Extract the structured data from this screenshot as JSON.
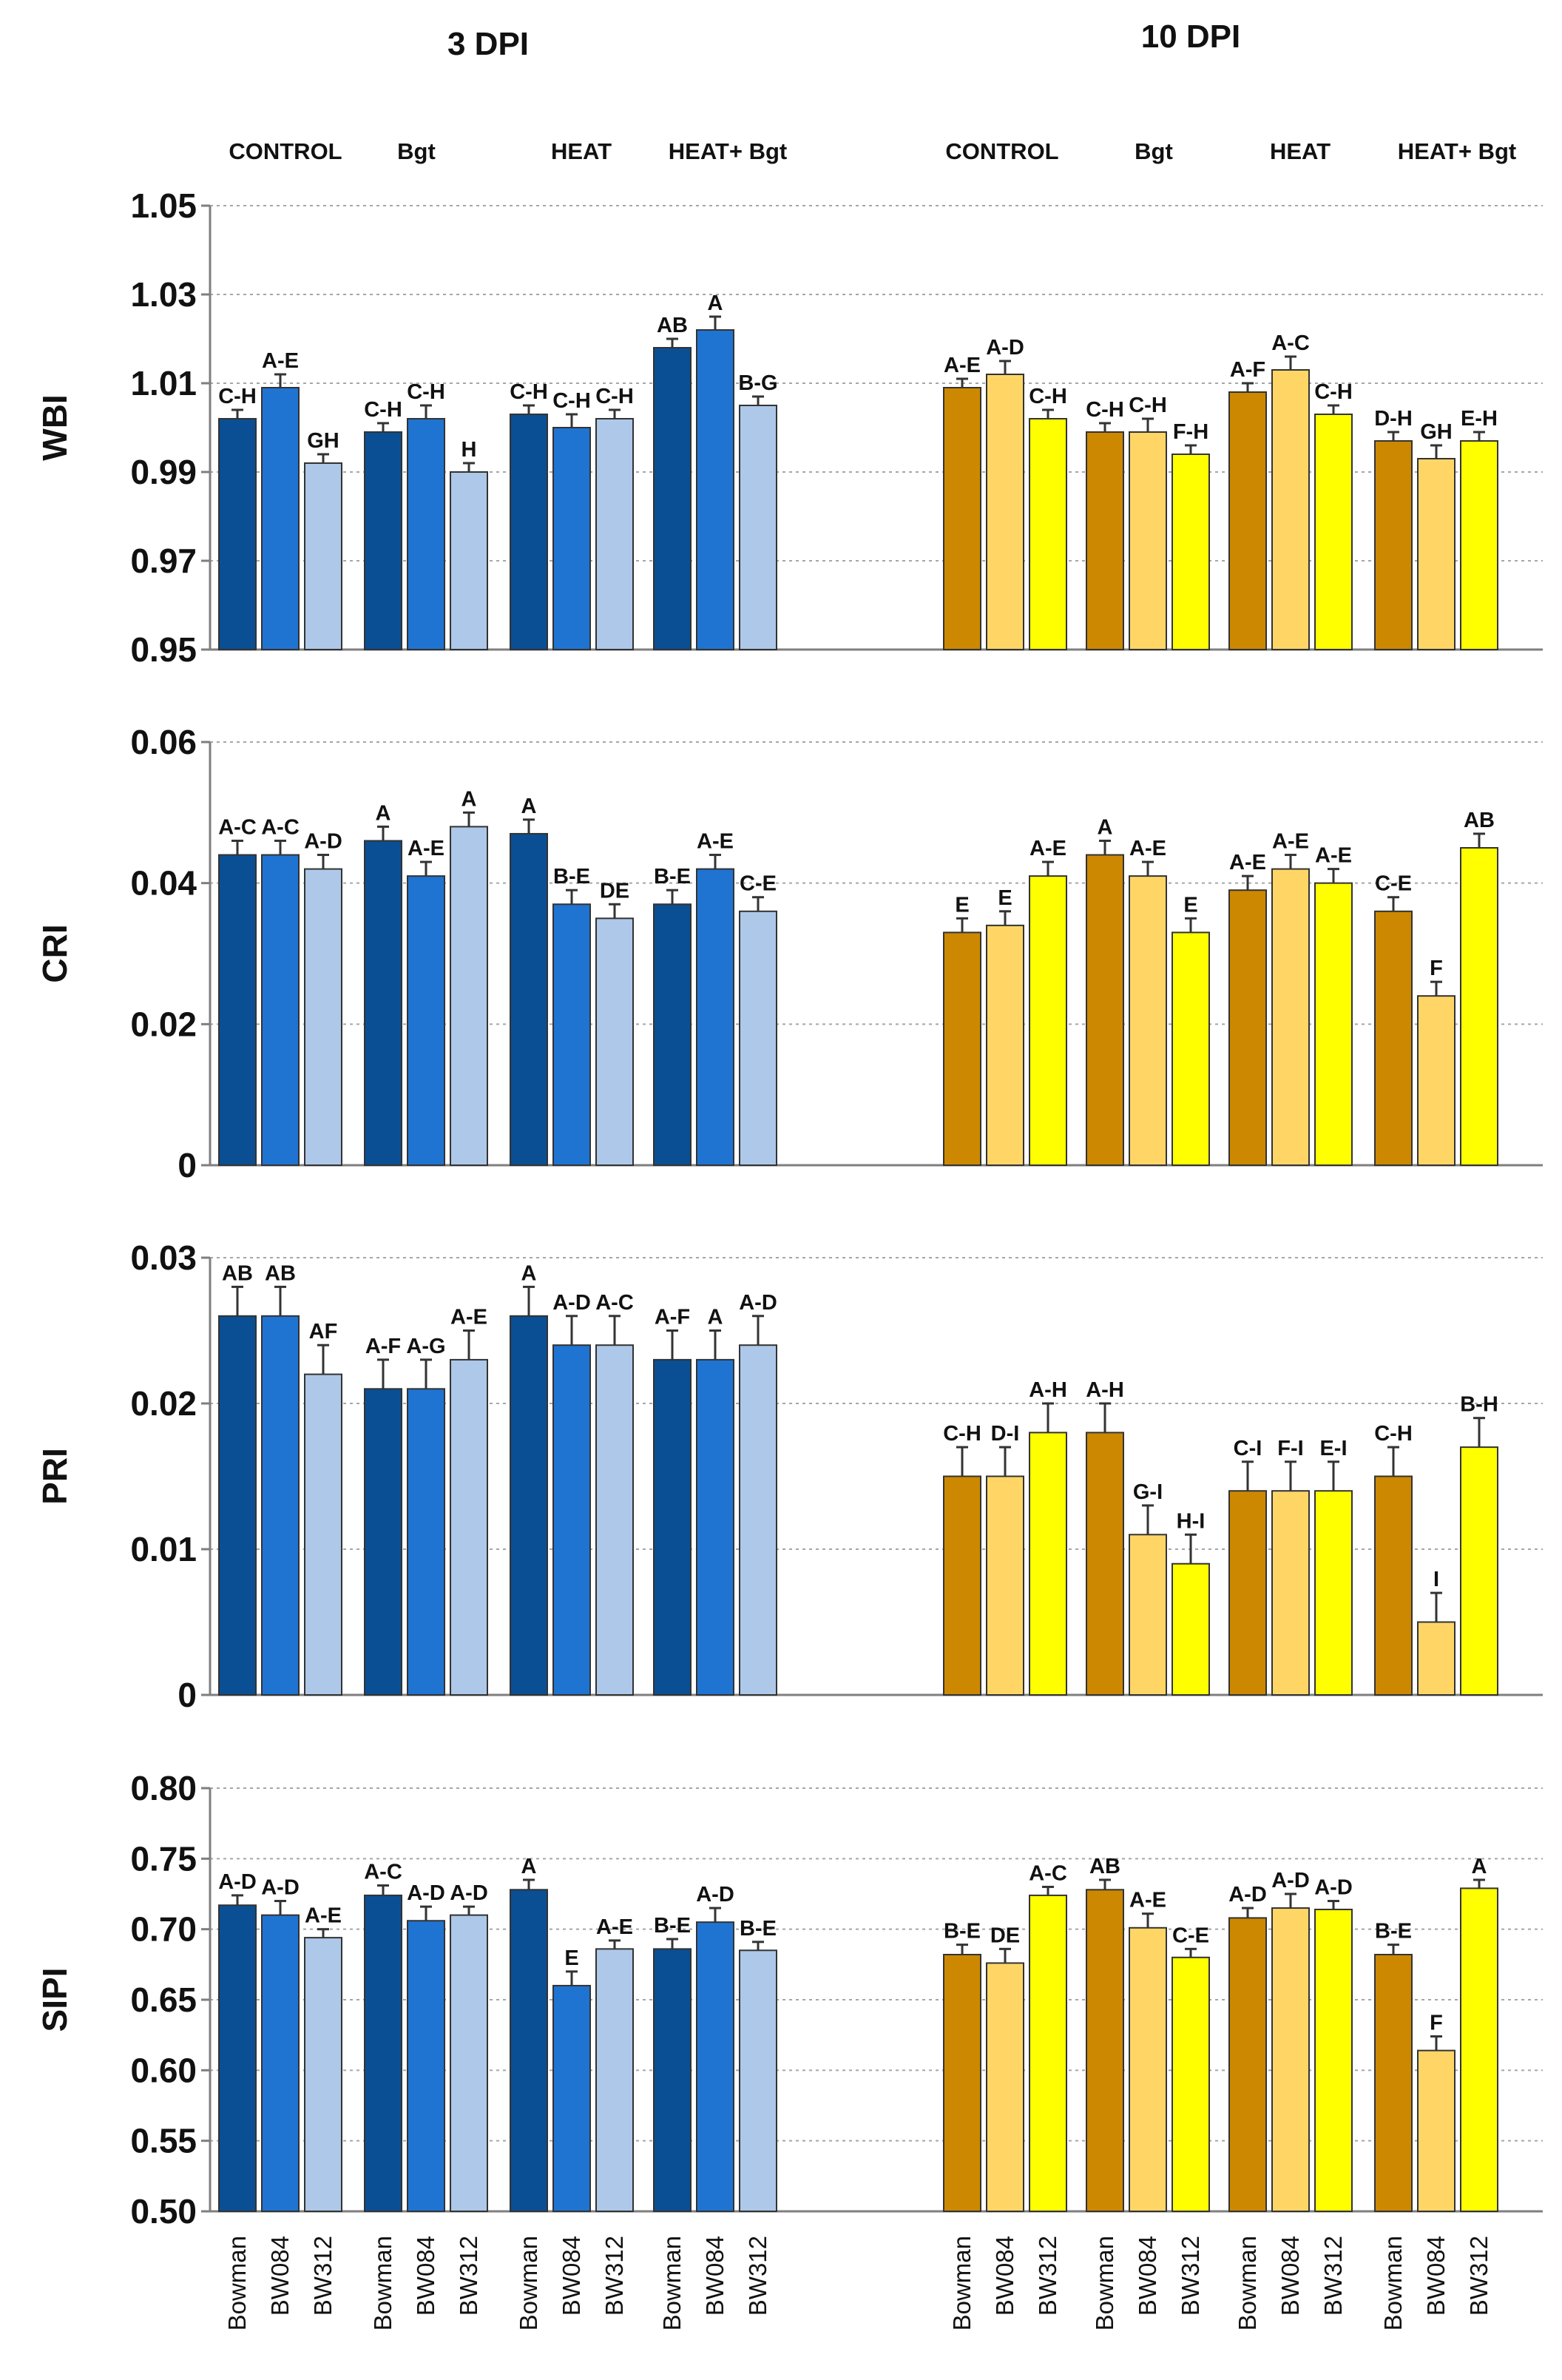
{
  "headers": [
    "3 DPI",
    "10 DPI"
  ],
  "treatments": [
    "CONTROL",
    "Bgt",
    "HEAT",
    "HEAT+ Bgt"
  ],
  "cultivars": [
    "Bowman",
    "BW084",
    "BW312"
  ],
  "colors": {
    "3dpi": [
      "#0a4f94",
      "#1f74d2",
      "#adc8e8"
    ],
    "10dpi": [
      "#cc8800",
      "#ffd666",
      "#ffff00"
    ],
    "grid": "#a6a6a6",
    "axis": "#7f7f7f",
    "bar_edge": "#333333"
  },
  "chart_data": [
    {
      "type": "bar",
      "title": "",
      "ylabel": "WBI",
      "ylim": [
        0.95,
        1.05
      ],
      "yticks": [
        "1.05",
        "1.03",
        "1.01",
        "0.99",
        "0.97",
        "0.95"
      ],
      "series": [
        {
          "name": "3 DPI",
          "values": [
            [
              1.002,
              1.009,
              0.992
            ],
            [
              0.999,
              1.002,
              0.99
            ],
            [
              1.003,
              1.0,
              1.002
            ],
            [
              1.018,
              1.022,
              1.005
            ]
          ],
          "errors": [
            [
              0.002,
              0.003,
              0.002
            ],
            [
              0.002,
              0.003,
              0.002
            ],
            [
              0.002,
              0.003,
              0.002
            ],
            [
              0.002,
              0.003,
              0.002
            ]
          ],
          "labels": [
            [
              "C-H",
              "A-E",
              "GH"
            ],
            [
              "C-H",
              "C-H",
              "H"
            ],
            [
              "C-H",
              "C-H",
              "C-H"
            ],
            [
              "AB",
              "A",
              "B-G"
            ]
          ]
        },
        {
          "name": "10 DPI",
          "values": [
            [
              1.009,
              1.012,
              1.002
            ],
            [
              0.999,
              0.999,
              0.994
            ],
            [
              1.008,
              1.013,
              1.003
            ],
            [
              0.997,
              0.993,
              0.997
            ]
          ],
          "errors": [
            [
              0.002,
              0.003,
              0.002
            ],
            [
              0.002,
              0.003,
              0.002
            ],
            [
              0.002,
              0.003,
              0.002
            ],
            [
              0.002,
              0.003,
              0.002
            ]
          ],
          "labels": [
            [
              "A-E",
              "A-D",
              "C-H"
            ],
            [
              "C-H",
              "C-H",
              "F-H"
            ],
            [
              "A-F",
              "A-C",
              "C-H"
            ],
            [
              "D-H",
              "GH",
              "E-H"
            ]
          ]
        }
      ]
    },
    {
      "type": "bar",
      "title": "",
      "ylabel": "CRI",
      "ylim": [
        0,
        0.06
      ],
      "yticks": [
        "0.06",
        "0.04",
        "0.02",
        "0"
      ],
      "series": [
        {
          "name": "3 DPI",
          "values": [
            [
              0.044,
              0.044,
              0.042
            ],
            [
              0.046,
              0.041,
              0.048
            ],
            [
              0.047,
              0.037,
              0.035
            ],
            [
              0.037,
              0.042,
              0.036
            ]
          ],
          "errors": [
            [
              0.002,
              0.002,
              0.002
            ],
            [
              0.002,
              0.002,
              0.002
            ],
            [
              0.002,
              0.002,
              0.002
            ],
            [
              0.002,
              0.002,
              0.002
            ]
          ],
          "labels": [
            [
              "A-C",
              "A-C",
              "A-D"
            ],
            [
              "A",
              "A-E",
              "A"
            ],
            [
              "A",
              "B-E",
              "DE"
            ],
            [
              "B-E",
              "A-E",
              "C-E"
            ]
          ]
        },
        {
          "name": "10 DPI",
          "values": [
            [
              0.033,
              0.034,
              0.041
            ],
            [
              0.044,
              0.041,
              0.033
            ],
            [
              0.039,
              0.042,
              0.04
            ],
            [
              0.036,
              0.024,
              0.045
            ]
          ],
          "errors": [
            [
              0.002,
              0.002,
              0.002
            ],
            [
              0.002,
              0.002,
              0.002
            ],
            [
              0.002,
              0.002,
              0.002
            ],
            [
              0.002,
              0.002,
              0.002
            ]
          ],
          "labels": [
            [
              "E",
              "E",
              "A-E"
            ],
            [
              "A",
              "A-E",
              "E"
            ],
            [
              "A-E",
              "A-E",
              "A-E"
            ],
            [
              "C-E",
              "F",
              "AB"
            ]
          ]
        }
      ]
    },
    {
      "type": "bar",
      "title": "",
      "ylabel": "PRI",
      "ylim": [
        0,
        0.03
      ],
      "yticks": [
        "0.03",
        "0.02",
        "0.01",
        "0"
      ],
      "series": [
        {
          "name": "3 DPI",
          "values": [
            [
              0.026,
              0.026,
              0.022
            ],
            [
              0.021,
              0.021,
              0.023
            ],
            [
              0.026,
              0.024,
              0.024
            ],
            [
              0.023,
              0.023,
              0.024
            ]
          ],
          "errors": [
            [
              0.002,
              0.002,
              0.002
            ],
            [
              0.002,
              0.002,
              0.002
            ],
            [
              0.002,
              0.002,
              0.002
            ],
            [
              0.002,
              0.002,
              0.002
            ]
          ],
          "labels": [
            [
              "AB",
              "AB",
              "AF"
            ],
            [
              "A-F",
              "A-G",
              "A-E"
            ],
            [
              "A",
              "A-D",
              "A-C"
            ],
            [
              "A-F",
              "A",
              "A-D"
            ]
          ]
        },
        {
          "name": "10 DPI",
          "values": [
            [
              0.015,
              0.015,
              0.018
            ],
            [
              0.018,
              0.011,
              0.009
            ],
            [
              0.014,
              0.014,
              0.014
            ],
            [
              0.015,
              0.005,
              0.017
            ]
          ],
          "errors": [
            [
              0.002,
              0.002,
              0.002
            ],
            [
              0.002,
              0.002,
              0.002
            ],
            [
              0.002,
              0.002,
              0.002
            ],
            [
              0.002,
              0.002,
              0.002
            ]
          ],
          "labels": [
            [
              "C-H",
              "D-I",
              "A-H"
            ],
            [
              "A-H",
              "G-I",
              "H-I"
            ],
            [
              "C-I",
              "F-I",
              "E-I"
            ],
            [
              "C-H",
              "I",
              "B-H"
            ]
          ]
        }
      ]
    },
    {
      "type": "bar",
      "title": "",
      "ylabel": "SIPI",
      "ylim": [
        0.5,
        0.8
      ],
      "yticks": [
        "0.80",
        "0.75",
        "0.70",
        "0.65",
        "0.60",
        "0.55",
        "0.50"
      ],
      "series": [
        {
          "name": "3 DPI",
          "values": [
            [
              0.717,
              0.71,
              0.694
            ],
            [
              0.724,
              0.706,
              0.71
            ],
            [
              0.728,
              0.66,
              0.686
            ],
            [
              0.686,
              0.705,
              0.685
            ]
          ],
          "errors": [
            [
              0.007,
              0.01,
              0.006
            ],
            [
              0.007,
              0.01,
              0.006
            ],
            [
              0.007,
              0.01,
              0.006
            ],
            [
              0.007,
              0.01,
              0.006
            ]
          ],
          "labels": [
            [
              "A-D",
              "A-D",
              "A-E"
            ],
            [
              "A-C",
              "A-D",
              "A-D"
            ],
            [
              "A",
              "E",
              "A-E"
            ],
            [
              "B-E",
              "A-D",
              "B-E"
            ]
          ]
        },
        {
          "name": "10 DPI",
          "values": [
            [
              0.682,
              0.676,
              0.724
            ],
            [
              0.728,
              0.701,
              0.68
            ],
            [
              0.708,
              0.715,
              0.714
            ],
            [
              0.682,
              0.614,
              0.729
            ]
          ],
          "errors": [
            [
              0.007,
              0.01,
              0.006
            ],
            [
              0.007,
              0.01,
              0.006
            ],
            [
              0.007,
              0.01,
              0.006
            ],
            [
              0.007,
              0.01,
              0.006
            ]
          ],
          "labels": [
            [
              "B-E",
              "DE",
              "A-C"
            ],
            [
              "AB",
              "A-E",
              "C-E"
            ],
            [
              "A-D",
              "A-D",
              "A-D"
            ],
            [
              "B-E",
              "F",
              "A"
            ]
          ]
        }
      ]
    }
  ]
}
